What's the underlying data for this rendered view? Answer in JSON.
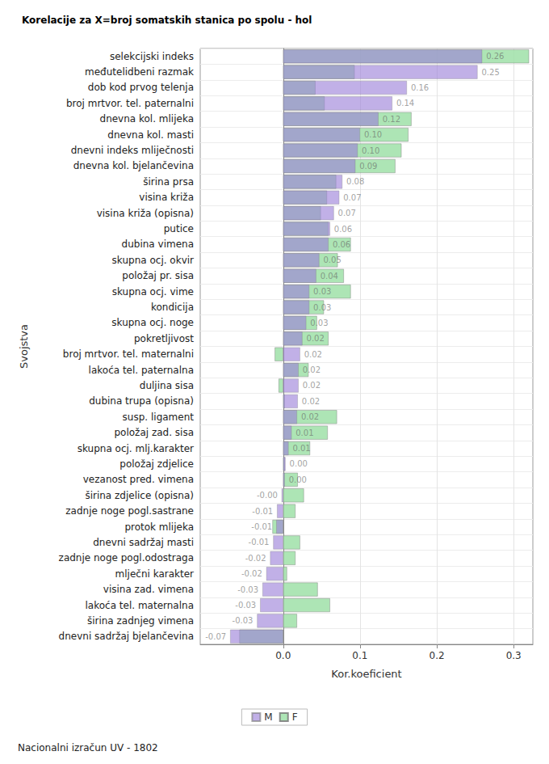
{
  "chart_data": {
    "type": "bar",
    "orientation": "horizontal",
    "title": "Korelacije za X=broj somatskih stanica po spolu - hol",
    "x_label": "Kor.koeficient",
    "y_label": "Svojstva",
    "annotation": "Nacionalni izračun UV - 1802",
    "legend": "bottom",
    "grid": true,
    "categories": [
      "selekcijski indeks",
      "međutelidbeni razmak",
      "dob kod prvog telenja",
      "broj mrtvor. tel. paternalni",
      "dnevna kol. mlijeka",
      "dnevna kol. masti",
      "dnevni indeks mliječnosti",
      "dnevna kol. bjelančevina",
      "širina prsa",
      "visina križa",
      "visina križa (opisna)",
      "putice",
      "dubina vimena",
      "skupna ocj. okvir",
      "položaj pr. sisa",
      "skupna ocj. vime",
      "kondicija",
      "skupna ocj. noge",
      "pokretljivost",
      "broj mrtvor. tel. maternalni",
      "lakoća tel. paternalna",
      "duljina sisa",
      "dubina trupa (opisna)",
      "susp. ligament",
      "položaj zad. sisa",
      "skupna ocj. mlj.karakter",
      "položaj zdjelice",
      "vezanost pred. vimena",
      "širina zdjelice (opisna)",
      "zadnje noge pogl.sastrane",
      "protok mlijeka",
      "dnevni sadržaj masti",
      "zadnje noge pogl.odostraga",
      "mlječni karakter",
      "visina zad. vimena",
      "lakoća tel. maternalna",
      "širina zadnjeg vimena",
      "dnevni sadržaj bjelančevina"
    ],
    "series": [
      {
        "name": "F",
        "color": "#9fe0a8",
        "values": [
          0.32,
          0.093,
          0.042,
          0.054,
          0.167,
          0.163,
          0.154,
          0.146,
          0.069,
          0.057,
          0.049,
          0.059,
          0.088,
          0.071,
          0.079,
          0.088,
          0.053,
          0.044,
          0.059,
          -0.011,
          0.033,
          -0.006,
          0.002,
          0.07,
          0.058,
          0.035,
          0.002,
          0.019,
          0.027,
          0.016,
          -0.014,
          0.022,
          0.016,
          0.005,
          0.045,
          0.061,
          0.018,
          -0.057
        ]
      },
      {
        "name": "M",
        "color": "#9b7fd9",
        "data_labels": true,
        "values": [
          0.259,
          0.253,
          0.161,
          0.142,
          0.124,
          0.1,
          0.097,
          0.094,
          0.077,
          0.073,
          0.066,
          0.061,
          0.059,
          0.047,
          0.043,
          0.034,
          0.034,
          0.03,
          0.025,
          0.022,
          0.02,
          0.02,
          0.019,
          0.018,
          0.011,
          0.007,
          0.003,
          0.002,
          -0.002,
          -0.008,
          -0.009,
          -0.013,
          -0.017,
          -0.022,
          -0.027,
          -0.03,
          -0.034,
          -0.069
        ],
        "value_labels": [
          "0.26",
          "0.25",
          "0.16",
          "0.14",
          "0.12",
          "0.10",
          "0.10",
          "0.09",
          "0.08",
          "0.07",
          "0.07",
          "0.06",
          "0.06",
          "0.05",
          "0.04",
          "0.03",
          "0.03",
          "0.03",
          "0.02",
          "0.02",
          "0.02",
          "0.02",
          "0.02",
          "0.02",
          "0.01",
          "0.01",
          "0.00",
          "0.00",
          "-0.00",
          "-0.01",
          "-0.01",
          "-0.01",
          "-0.02",
          "-0.02",
          "-0.03",
          "-0.03",
          "-0.03",
          "-0.07"
        ]
      }
    ],
    "xlim": [
      -0.108,
      0.325
    ],
    "xticks": [
      {
        "value": 0,
        "label": "0.0"
      },
      0.1,
      0.2,
      0.3
    ]
  }
}
